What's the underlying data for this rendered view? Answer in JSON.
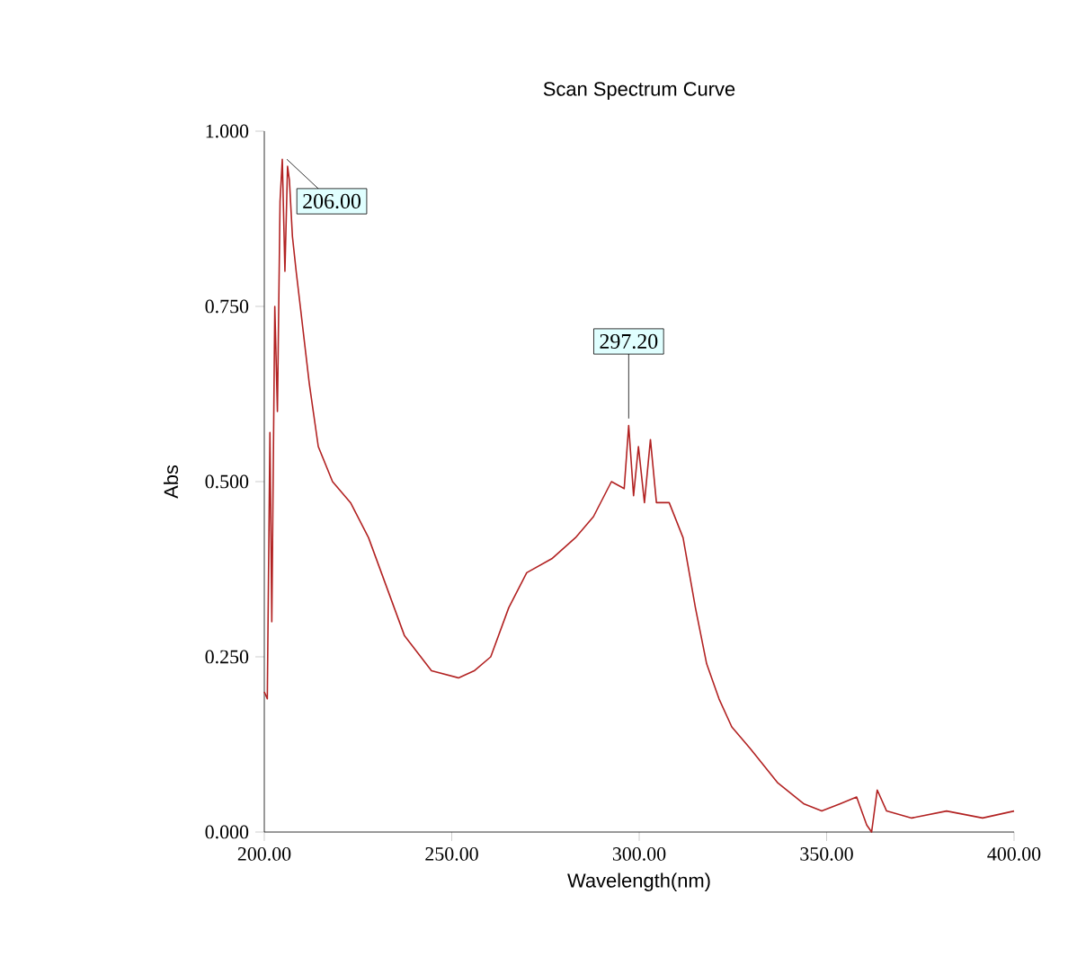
{
  "chart_data": {
    "type": "line",
    "title": "Scan Spectrum Curve",
    "xlabel": "Wavelength(nm)",
    "ylabel": "Abs",
    "xlim": [
      200,
      400
    ],
    "ylim": [
      0,
      1
    ],
    "xticks": [
      {
        "value": 200,
        "label": "200.00"
      },
      {
        "value": 250,
        "label": "250.00"
      },
      {
        "value": 300,
        "label": "300.00"
      },
      {
        "value": 350,
        "label": "350.00"
      },
      {
        "value": 400,
        "label": "400.00"
      }
    ],
    "yticks": [
      {
        "value": 0,
        "label": "0.000"
      },
      {
        "value": 0.25,
        "label": "0.250"
      },
      {
        "value": 0.5,
        "label": "0.500"
      },
      {
        "value": 0.75,
        "label": "0.750"
      },
      {
        "value": 1,
        "label": "1.000"
      }
    ],
    "grid": false,
    "marker": "none",
    "line_style": "solid",
    "annotations": [
      {
        "text": "206.00",
        "x": 206,
        "y": 0.95
      },
      {
        "text": "297.20",
        "x": 297.2,
        "y": 0.58
      }
    ],
    "series": [
      {
        "color": "#b22222",
        "x": [
          200,
          200.8,
          201.5,
          202,
          202.8,
          203.5,
          204.2,
          204.8,
          205.5,
          206.2,
          206.7,
          207.5,
          208.5,
          209.6,
          212,
          214.4,
          218.2,
          223,
          227.8,
          232.6,
          237.4,
          244.6,
          251.8,
          256,
          260.4,
          265.2,
          270,
          276.7,
          283,
          287.8,
          292.6,
          296,
          297.2,
          298.5,
          299.8,
          301.4,
          303,
          304.6,
          308,
          311.7,
          315,
          318,
          321.3,
          324.7,
          329.5,
          331,
          337,
          344,
          348.7,
          353.5,
          358,
          360.7,
          362,
          363.5,
          366,
          372.7,
          382,
          391.6,
          400
        ],
        "values": [
          0.2,
          0.19,
          0.57,
          0.3,
          0.75,
          0.6,
          0.9,
          0.96,
          0.8,
          0.95,
          0.93,
          0.85,
          0.8,
          0.75,
          0.64,
          0.55,
          0.5,
          0.47,
          0.42,
          0.35,
          0.28,
          0.23,
          0.22,
          0.23,
          0.25,
          0.32,
          0.37,
          0.39,
          0.42,
          0.45,
          0.5,
          0.49,
          0.58,
          0.48,
          0.55,
          0.47,
          0.56,
          0.47,
          0.47,
          0.42,
          0.32,
          0.24,
          0.19,
          0.15,
          0.12,
          0.11,
          0.07,
          0.04,
          0.03,
          0.04,
          0.05,
          0.01,
          0,
          0.06,
          0.03,
          0.02,
          0.03,
          0.02,
          0.03
        ]
      }
    ]
  }
}
